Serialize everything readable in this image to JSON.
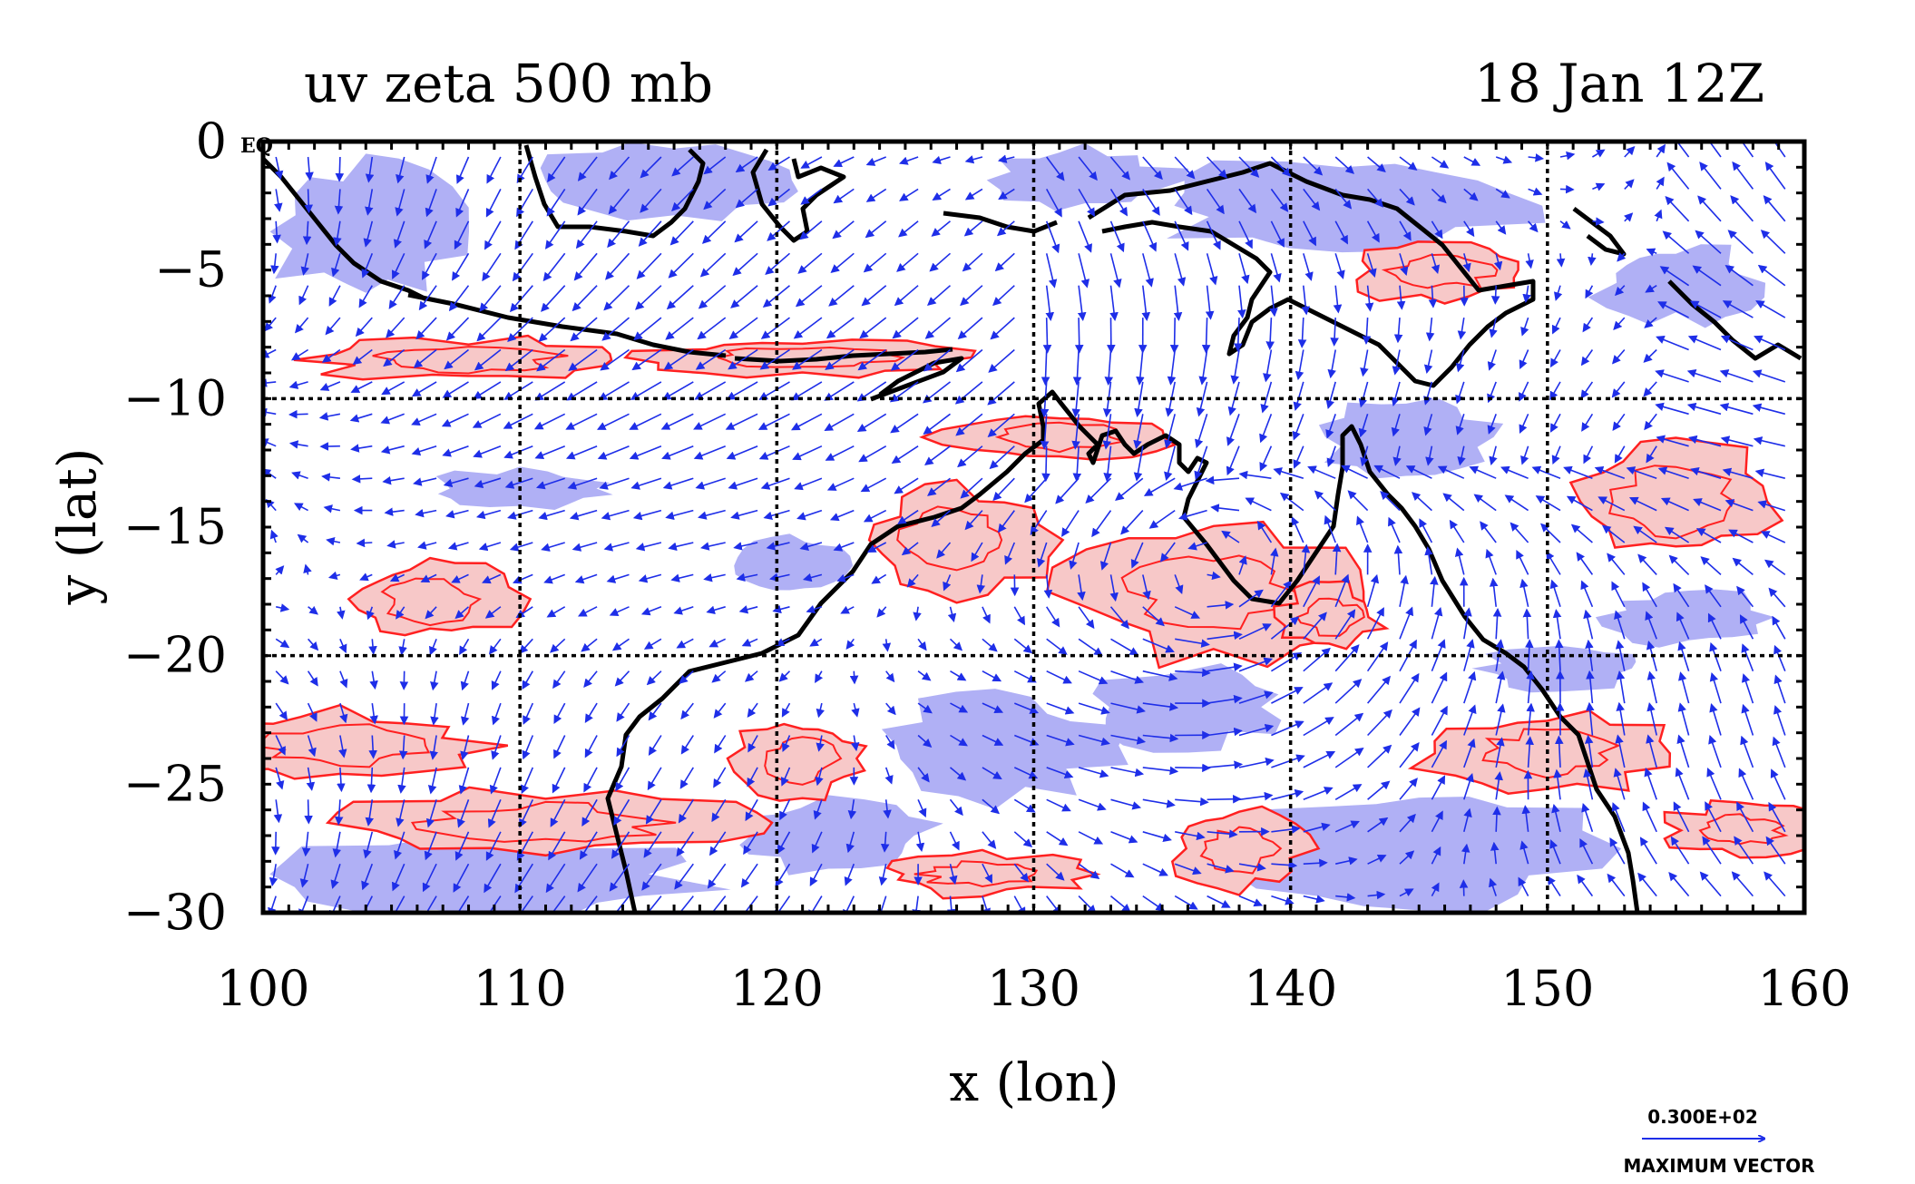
{
  "chart_data": {
    "type": "vector-contour-map",
    "title_left": "uv zeta 500 mb",
    "title_right": "18 Jan 12Z",
    "xlabel": "x (lon)",
    "ylabel": "y (lat)",
    "xlim": [
      100,
      160
    ],
    "ylim": [
      -30,
      0
    ],
    "x_ticks": [
      100,
      110,
      120,
      130,
      140,
      150,
      160
    ],
    "y_ticks": [
      0,
      -5,
      -10,
      -15,
      -20,
      -25,
      -30
    ],
    "x_tick_labels": [
      "100",
      "110",
      "120",
      "130",
      "140",
      "150",
      "160"
    ],
    "y_tick_labels": [
      "0",
      "−5",
      "−10",
      "−15",
      "−20",
      "−25",
      "−30"
    ],
    "corner_label": "EQ",
    "grid": true,
    "grid_lon": [
      110,
      120,
      130,
      140,
      150
    ],
    "grid_lat": [
      -10,
      -20
    ],
    "colors": {
      "positive_vorticity_fill": "#f7c8c8",
      "positive_vorticity_contour": "#ff2020",
      "negative_vorticity_fill": "#b0b0f5",
      "vector": "#1e2ee8",
      "coastline": "#000000"
    },
    "positive_regions": [
      {
        "lon": 103,
        "lat": -23.5,
        "rlon": 5.5,
        "rlat": 1.3
      },
      {
        "lon": 111,
        "lat": -26.5,
        "rlon": 8,
        "rlat": 1.2
      },
      {
        "lon": 106.5,
        "lat": -17.8,
        "rlon": 3.2,
        "rlat": 1.5
      },
      {
        "lon": 108,
        "lat": -8.5,
        "rlon": 6,
        "rlat": 0.8
      },
      {
        "lon": 121,
        "lat": -8.4,
        "rlon": 6,
        "rlat": 0.7
      },
      {
        "lon": 131,
        "lat": -11.5,
        "rlon": 4.5,
        "rlat": 0.9
      },
      {
        "lon": 137,
        "lat": -17.5,
        "rlon": 5.5,
        "rlat": 2.5
      },
      {
        "lon": 127,
        "lat": -15.5,
        "rlon": 3.5,
        "rlat": 2
      },
      {
        "lon": 141.5,
        "lat": -18.5,
        "rlon": 2,
        "rlat": 1.2
      },
      {
        "lon": 150,
        "lat": -23.8,
        "rlon": 4.5,
        "rlat": 1.5
      },
      {
        "lon": 155,
        "lat": -14,
        "rlon": 4,
        "rlat": 2.2
      },
      {
        "lon": 157.5,
        "lat": -26.8,
        "rlon": 3,
        "rlat": 1
      },
      {
        "lon": 146,
        "lat": -5,
        "rlon": 3.5,
        "rlat": 1.2
      },
      {
        "lon": 138,
        "lat": -27.5,
        "rlon": 2.5,
        "rlat": 1.5
      },
      {
        "lon": 121,
        "lat": -24,
        "rlon": 2.5,
        "rlat": 1.5
      },
      {
        "lon": 128,
        "lat": -28.5,
        "rlon": 4,
        "rlat": 0.8
      }
    ],
    "negative_regions": [
      {
        "lon": 109,
        "lat": -28.5,
        "rlon": 8,
        "rlat": 1.6
      },
      {
        "lon": 145,
        "lat": -27.5,
        "rlon": 6.5,
        "rlat": 2.2
      },
      {
        "lon": 142,
        "lat": -2.5,
        "rlon": 7,
        "rlat": 1.8
      },
      {
        "lon": 116,
        "lat": -1.5,
        "rlon": 5,
        "rlat": 1.4
      },
      {
        "lon": 104,
        "lat": -3.5,
        "rlon": 3.5,
        "rlat": 2.5
      },
      {
        "lon": 132,
        "lat": -1.5,
        "rlon": 3.5,
        "rlat": 1.2
      },
      {
        "lon": 128.5,
        "lat": -23.5,
        "rlon": 4.5,
        "rlat": 2
      },
      {
        "lon": 136,
        "lat": -22,
        "rlon": 3.5,
        "rlat": 1.5
      },
      {
        "lon": 155.5,
        "lat": -18.5,
        "rlon": 3,
        "rlat": 1
      },
      {
        "lon": 144.5,
        "lat": -11.5,
        "rlon": 3.5,
        "rlat": 1.5
      },
      {
        "lon": 155,
        "lat": -5.5,
        "rlon": 3,
        "rlat": 1.5
      },
      {
        "lon": 110,
        "lat": -13.5,
        "rlon": 3.5,
        "rlat": 0.7
      },
      {
        "lon": 122,
        "lat": -27,
        "rlon": 4,
        "rlat": 1.3
      },
      {
        "lon": 120.5,
        "lat": -16.5,
        "rlon": 2,
        "rlat": 1
      },
      {
        "lon": 150.5,
        "lat": -20.5,
        "rlon": 3,
        "rlat": 0.8
      }
    ],
    "legend": {
      "magnitude_label": "0.300E+02",
      "caption": "MAXIMUM VECTOR"
    }
  }
}
